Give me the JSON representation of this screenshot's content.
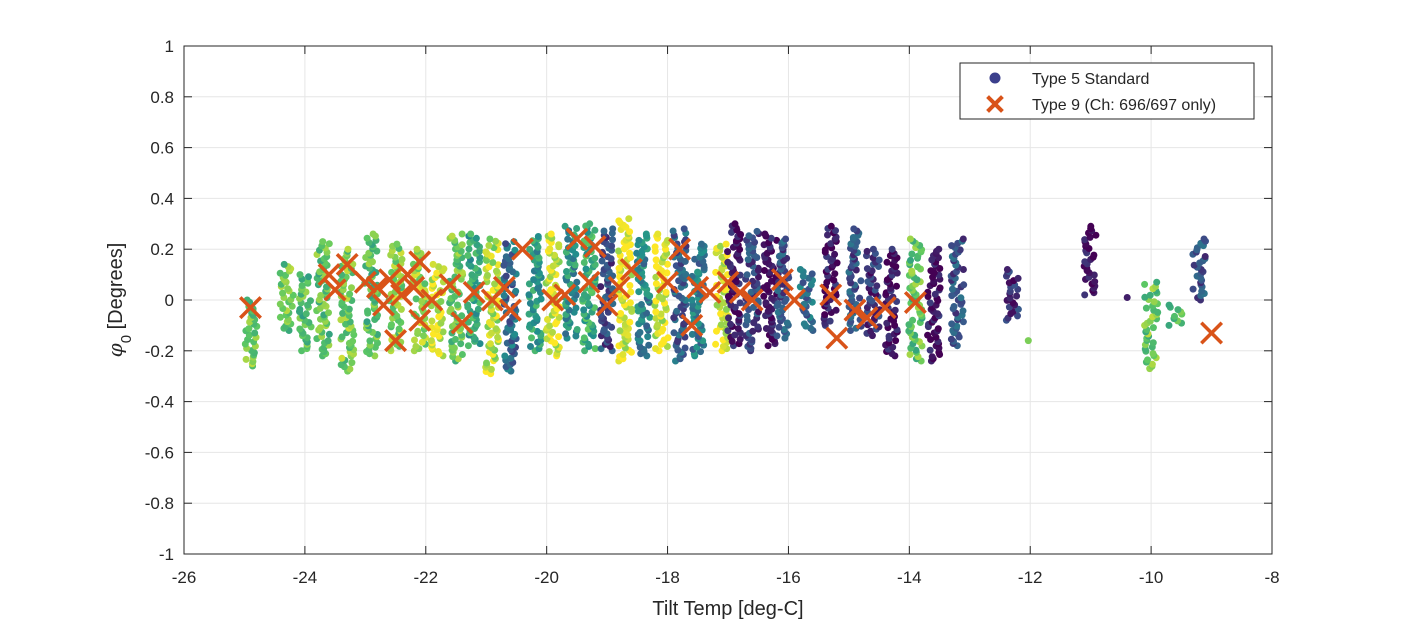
{
  "chart_data": {
    "type": "scatter",
    "title": "",
    "xlabel": "Tilt Temp [deg-C]",
    "ylabel_symbol": "φ",
    "ylabel_subscript": "0",
    "ylabel_rest": " [Degrees]",
    "xlim": [
      -26,
      -8
    ],
    "ylim": [
      -1,
      1
    ],
    "xticks": [
      -26,
      -24,
      -22,
      -20,
      -18,
      -16,
      -14,
      -12,
      -10,
      -8
    ],
    "yticks": [
      -1,
      -0.8,
      -0.6,
      -0.4,
      -0.2,
      0,
      0.2,
      0.4,
      0.6,
      0.8,
      1
    ],
    "xtick_labels": [
      "-26",
      "-24",
      "-22",
      "-20",
      "-18",
      "-16",
      "-14",
      "-12",
      "-10",
      "-8"
    ],
    "ytick_labels": [
      "-1",
      "-0.8",
      "-0.6",
      "-0.4",
      "-0.2",
      "0",
      "0.2",
      "0.4",
      "0.6",
      "0.8",
      "1"
    ],
    "grid": true,
    "legend_position": "top-right",
    "colormap_stops": [
      "#440154",
      "#3b528b",
      "#21918c",
      "#5ec962",
      "#fde725"
    ],
    "series": [
      {
        "name": "Type 5 Standard",
        "marker": "dot",
        "legend_color": "#3b3f8c",
        "columns": [
          {
            "x": -24.9,
            "ymin": -0.26,
            "ymax": 0.0,
            "c": 0.75
          },
          {
            "x": -24.3,
            "ymin": -0.12,
            "ymax": 0.14,
            "c": 0.75
          },
          {
            "x": -24.0,
            "ymin": -0.2,
            "ymax": 0.1,
            "c": 0.7
          },
          {
            "x": -23.7,
            "ymin": -0.22,
            "ymax": 0.23,
            "c": 0.72
          },
          {
            "x": -23.3,
            "ymin": -0.28,
            "ymax": 0.2,
            "c": 0.78
          },
          {
            "x": -22.9,
            "ymin": -0.22,
            "ymax": 0.26,
            "c": 0.72
          },
          {
            "x": -22.5,
            "ymin": -0.2,
            "ymax": 0.22,
            "c": 0.8
          },
          {
            "x": -22.1,
            "ymin": -0.2,
            "ymax": 0.2,
            "c": 0.85
          },
          {
            "x": -21.8,
            "ymin": -0.22,
            "ymax": 0.14,
            "c": 0.95
          },
          {
            "x": -21.5,
            "ymin": -0.24,
            "ymax": 0.26,
            "c": 0.75
          },
          {
            "x": -21.2,
            "ymin": -0.18,
            "ymax": 0.26,
            "c": 0.6
          },
          {
            "x": -20.9,
            "ymin": -0.29,
            "ymax": 0.24,
            "c": 0.9
          },
          {
            "x": -20.6,
            "ymin": -0.28,
            "ymax": 0.23,
            "c": 0.35
          },
          {
            "x": -20.2,
            "ymin": -0.2,
            "ymax": 0.25,
            "c": 0.55
          },
          {
            "x": -19.9,
            "ymin": -0.22,
            "ymax": 0.26,
            "c": 0.95
          },
          {
            "x": -19.6,
            "ymin": -0.15,
            "ymax": 0.29,
            "c": 0.5
          },
          {
            "x": -19.3,
            "ymin": -0.2,
            "ymax": 0.3,
            "c": 0.62
          },
          {
            "x": -19.0,
            "ymin": -0.2,
            "ymax": 0.28,
            "c": 0.22
          },
          {
            "x": -18.7,
            "ymin": -0.24,
            "ymax": 0.32,
            "c": 0.95
          },
          {
            "x": -18.4,
            "ymin": -0.22,
            "ymax": 0.26,
            "c": 0.45
          },
          {
            "x": -18.1,
            "ymin": -0.2,
            "ymax": 0.26,
            "c": 0.95
          },
          {
            "x": -17.8,
            "ymin": -0.24,
            "ymax": 0.28,
            "c": 0.3
          },
          {
            "x": -17.5,
            "ymin": -0.22,
            "ymax": 0.22,
            "c": 0.4
          },
          {
            "x": -17.1,
            "ymin": -0.2,
            "ymax": 0.22,
            "c": 0.95
          },
          {
            "x": -16.9,
            "ymin": -0.18,
            "ymax": 0.3,
            "c": 0.05
          },
          {
            "x": -16.6,
            "ymin": -0.2,
            "ymax": 0.27,
            "c": 0.2
          },
          {
            "x": -16.3,
            "ymin": -0.18,
            "ymax": 0.26,
            "c": 0.05
          },
          {
            "x": -16.1,
            "ymin": -0.15,
            "ymax": 0.24,
            "c": 0.25
          },
          {
            "x": -15.7,
            "ymin": -0.12,
            "ymax": 0.12,
            "c": 0.35
          },
          {
            "x": -15.3,
            "ymin": -0.1,
            "ymax": 0.29,
            "c": 0.05
          },
          {
            "x": -14.9,
            "ymin": -0.12,
            "ymax": 0.28,
            "c": 0.25
          },
          {
            "x": -14.6,
            "ymin": -0.14,
            "ymax": 0.2,
            "c": 0.15
          },
          {
            "x": -14.3,
            "ymin": -0.22,
            "ymax": 0.2,
            "c": 0.05
          },
          {
            "x": -13.9,
            "ymin": -0.24,
            "ymax": 0.24,
            "c": 0.72
          },
          {
            "x": -13.6,
            "ymin": -0.24,
            "ymax": 0.2,
            "c": 0.05
          },
          {
            "x": -13.2,
            "ymin": -0.18,
            "ymax": 0.24,
            "c": 0.25
          },
          {
            "x": -12.3,
            "ymin": -0.08,
            "ymax": 0.12,
            "c": 0.15
          },
          {
            "x": -12.0,
            "ymin": -0.16,
            "ymax": -0.16,
            "c": 0.75
          },
          {
            "x": -11.0,
            "ymin": 0.02,
            "ymax": 0.29,
            "c": 0.05
          },
          {
            "x": -10.5,
            "ymin": 0.01,
            "ymax": 0.01,
            "c": 0.2
          },
          {
            "x": -10.0,
            "ymin": -0.27,
            "ymax": 0.07,
            "c": 0.75
          },
          {
            "x": -9.6,
            "ymin": -0.1,
            "ymax": -0.02,
            "c": 0.7
          },
          {
            "x": -9.2,
            "ymin": -0.0,
            "ymax": 0.24,
            "c": 0.25
          }
        ]
      },
      {
        "name": "Type 9 (Ch: 696/697 only)",
        "marker": "x",
        "color": "#d95319",
        "points": [
          [
            -24.9,
            -0.03
          ],
          [
            -23.6,
            0.1
          ],
          [
            -23.5,
            0.04
          ],
          [
            -23.3,
            0.14
          ],
          [
            -23.0,
            0.07
          ],
          [
            -22.8,
            0.05
          ],
          [
            -22.7,
            -0.02
          ],
          [
            -22.6,
            0.08
          ],
          [
            -22.5,
            -0.16
          ],
          [
            -22.4,
            0.02
          ],
          [
            -22.3,
            0.1
          ],
          [
            -22.2,
            0.05
          ],
          [
            -22.1,
            -0.08
          ],
          [
            -22.1,
            0.15
          ],
          [
            -21.9,
            0.0
          ],
          [
            -21.6,
            0.06
          ],
          [
            -21.4,
            -0.09
          ],
          [
            -21.2,
            0.03
          ],
          [
            -20.9,
            0.0
          ],
          [
            -20.7,
            0.05
          ],
          [
            -20.6,
            -0.04
          ],
          [
            -20.4,
            0.2
          ],
          [
            -19.9,
            0.0
          ],
          [
            -19.7,
            0.02
          ],
          [
            -19.5,
            0.24
          ],
          [
            -19.3,
            0.07
          ],
          [
            -19.2,
            0.21
          ],
          [
            -19.0,
            -0.02
          ],
          [
            -18.8,
            0.05
          ],
          [
            -18.6,
            0.12
          ],
          [
            -18.0,
            0.07
          ],
          [
            -17.8,
            0.2
          ],
          [
            -17.6,
            -0.1
          ],
          [
            -17.5,
            0.05
          ],
          [
            -17.3,
            0.03
          ],
          [
            -17.0,
            0.07
          ],
          [
            -16.8,
            0.03
          ],
          [
            -16.6,
            0.0
          ],
          [
            -16.1,
            0.08
          ],
          [
            -15.9,
            0.0
          ],
          [
            -15.3,
            0.02
          ],
          [
            -15.2,
            -0.15
          ],
          [
            -14.9,
            -0.04
          ],
          [
            -14.7,
            -0.07
          ],
          [
            -14.4,
            -0.03
          ],
          [
            -13.9,
            -0.01
          ],
          [
            -9.0,
            -0.13
          ]
        ]
      }
    ]
  },
  "legend": {
    "items": [
      {
        "label": "Type 5 Standard",
        "marker": "dot",
        "color": "#3b3f8c"
      },
      {
        "label": "Type 9 (Ch: 696/697 only)",
        "marker": "x",
        "color": "#d95319"
      }
    ]
  }
}
